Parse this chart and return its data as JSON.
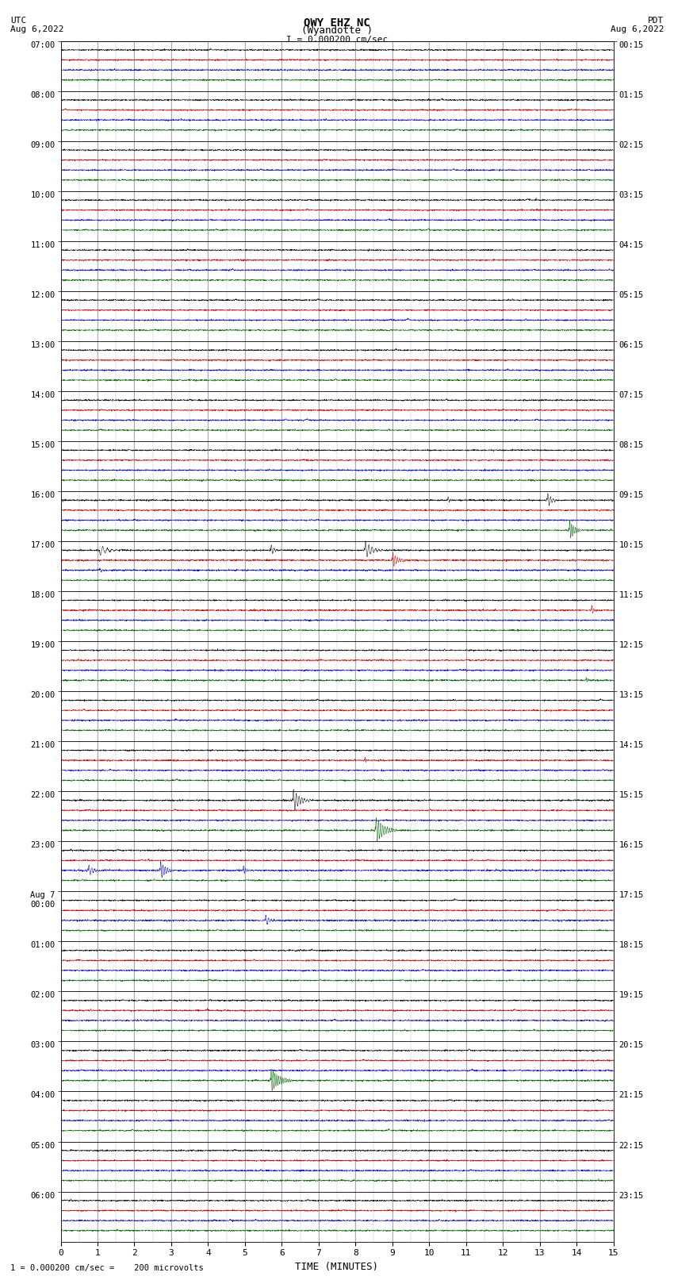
{
  "title_line1": "QWY EHZ NC",
  "title_line2": "(Wyandotte )",
  "title_scale": "I = 0.000200 cm/sec",
  "left_label": "UTC",
  "left_date": "Aug 6,2022",
  "right_label": "PDT",
  "right_date": "Aug 6,2022",
  "xlabel": "TIME (MINUTES)",
  "footnote": "1 = 0.000200 cm/sec =    200 microvolts",
  "xlim": [
    0,
    15
  ],
  "num_rows": 24,
  "utc_times": [
    "07:00",
    "08:00",
    "09:00",
    "10:00",
    "11:00",
    "12:00",
    "13:00",
    "14:00",
    "15:00",
    "16:00",
    "17:00",
    "18:00",
    "19:00",
    "20:00",
    "21:00",
    "22:00",
    "23:00",
    "Aug 7\n00:00",
    "01:00",
    "02:00",
    "03:00",
    "04:00",
    "05:00",
    "06:00"
  ],
  "pdt_times": [
    "00:15",
    "01:15",
    "02:15",
    "03:15",
    "04:15",
    "05:15",
    "06:15",
    "07:15",
    "08:15",
    "09:15",
    "10:15",
    "11:15",
    "12:15",
    "13:15",
    "14:15",
    "15:15",
    "16:15",
    "17:15",
    "18:15",
    "19:15",
    "20:15",
    "21:15",
    "22:15",
    "23:15"
  ],
  "bg_color": "#ffffff",
  "trace_colors": [
    "#000000",
    "#cc0000",
    "#0000cc",
    "#006600"
  ],
  "grid_color": "#888888",
  "grid_minor_color": "#cccccc",
  "sub_trace_offsets": [
    0.82,
    0.62,
    0.42,
    0.22
  ],
  "noise_scale": 0.06,
  "trace_lw": 0.35
}
